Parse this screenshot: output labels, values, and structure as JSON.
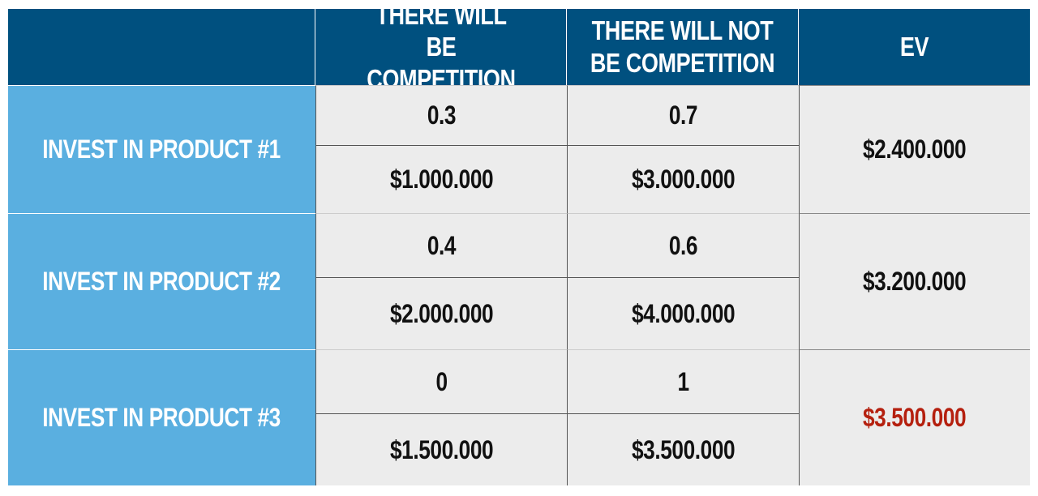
{
  "header": {
    "corner": "",
    "columns": [
      "THERE WILL BE COMPETITION",
      "THERE WILL NOT BE COMPETITION",
      "EV"
    ]
  },
  "rows": [
    {
      "label": "INVEST IN PRODUCT #1",
      "prob_competition": "0.3",
      "prob_no_competition": "0.7",
      "value_competition": "$1.000.000",
      "value_no_competition": "$3.000.000",
      "ev": "$2.400.000",
      "ev_highlight": false
    },
    {
      "label": "INVEST IN PRODUCT #2",
      "prob_competition": "0.4",
      "prob_no_competition": "0.6",
      "value_competition": "$2.000.000",
      "value_no_competition": "$4.000.000",
      "ev": "$3.200.000",
      "ev_highlight": false
    },
    {
      "label": "INVEST IN PRODUCT #3",
      "prob_competition": "0",
      "prob_no_competition": "1",
      "value_competition": "$1.500.000",
      "value_no_competition": "$3.500.000",
      "ev": "$3.500.000",
      "ev_highlight": true
    }
  ],
  "colors": {
    "header": "#00507f",
    "row_label": "#5aafe0",
    "cell": "#ececec",
    "highlight": "#b5200f"
  }
}
